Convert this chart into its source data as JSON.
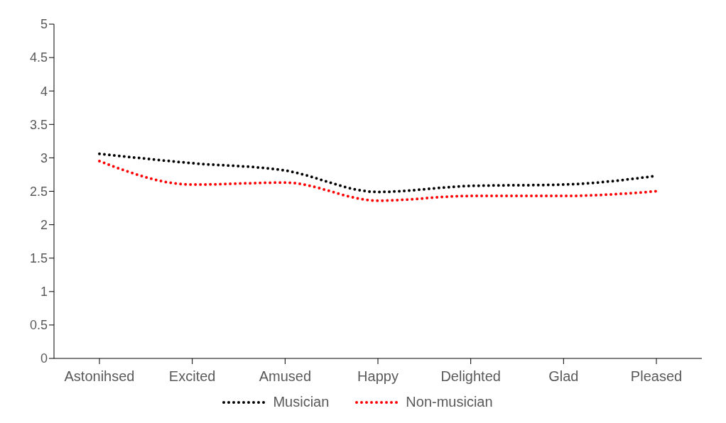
{
  "chart_data": {
    "type": "line",
    "categories": [
      "Astonihsed",
      "Excited",
      "Amused",
      "Happy",
      "Delighted",
      "Glad",
      "Pleased"
    ],
    "series": [
      {
        "name": "Musician",
        "color": "#000000",
        "values": [
          3.06,
          2.92,
          2.81,
          2.49,
          2.58,
          2.6,
          2.73
        ]
      },
      {
        "name": "Non-musician",
        "color": "#ff0000",
        "values": [
          2.95,
          2.6,
          2.63,
          2.36,
          2.43,
          2.43,
          2.5
        ]
      }
    ],
    "ylim": [
      0,
      5
    ],
    "yticks": [
      0,
      0.5,
      1,
      1.5,
      2,
      2.5,
      3,
      3.5,
      4,
      4.5,
      5
    ],
    "grid": false,
    "legend": "bottom",
    "marker": "none",
    "line_style": "dotted"
  }
}
